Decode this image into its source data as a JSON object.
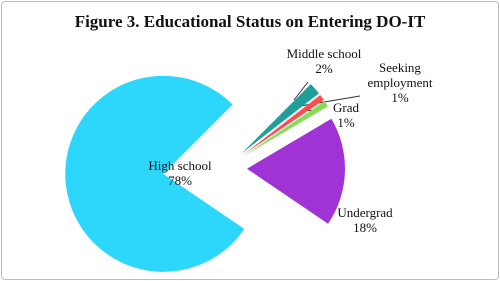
{
  "chart_data": {
    "type": "pie",
    "title": "Figure 3. Educational Status on Entering DO-IT",
    "categories": [
      "Middle school",
      "Seeking employment",
      "Grad",
      "Undergrad",
      "High school"
    ],
    "values": [
      2,
      1,
      1,
      18,
      78
    ],
    "value_labels": [
      "2%",
      "1%",
      "1%",
      "18%",
      "78%"
    ],
    "colors": [
      "#1f9e9a",
      "#ff4d4d",
      "#86dc55",
      "#a033d6",
      "#2dd6fb"
    ]
  }
}
